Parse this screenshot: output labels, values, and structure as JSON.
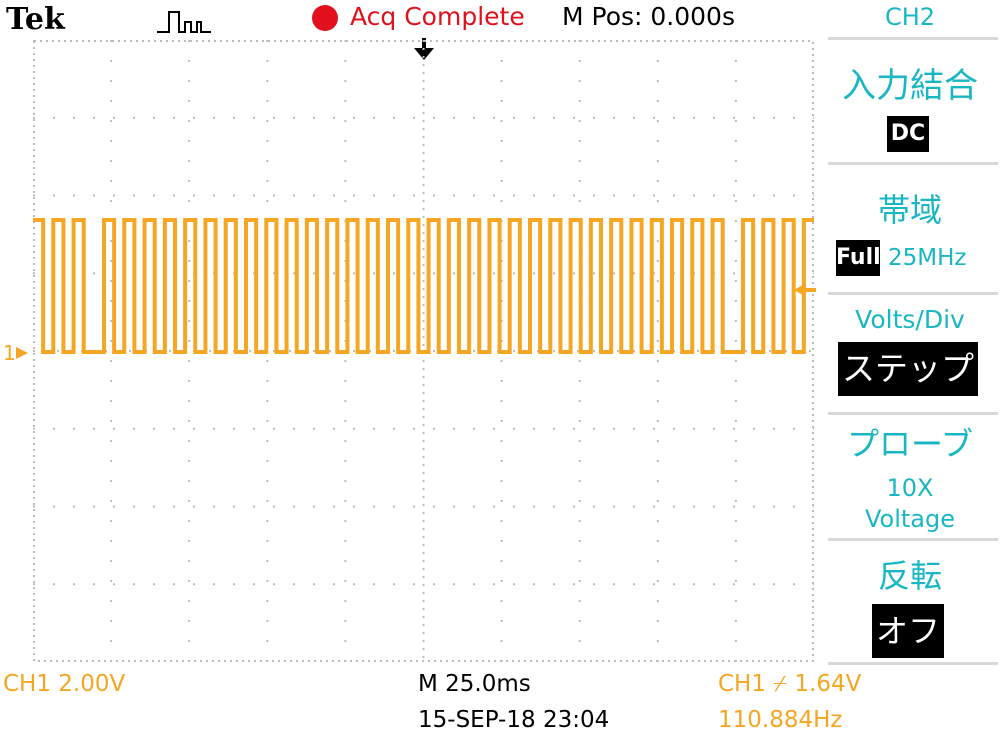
{
  "header": {
    "brand": "Tek",
    "acq_status": "Acq Complete",
    "m_pos": "M Pos: 0.000s"
  },
  "colors": {
    "ch1": "#f5a623",
    "menu": "#19b7c4",
    "status_red": "#e0101c",
    "grid_dot": "#bdbdbd"
  },
  "markers": {
    "ch1": "1"
  },
  "menu": {
    "channel": "CH2",
    "coupling_label": "入力結合",
    "coupling_value": "DC",
    "bandwidth_label": "帯域",
    "bandwidth_value": "Full",
    "bandwidth_unit": "25MHz",
    "voltsdiv_label": "Volts/Div",
    "voltsdiv_value": "ステップ",
    "probe_label": "プローブ",
    "probe_value": "10X",
    "probe_type": "Voltage",
    "invert_label": "反転",
    "invert_value": "オフ"
  },
  "status": {
    "ch1_scale": "CH1  2.00V",
    "timebase": "M 25.0ms",
    "datetime": "15-SEP-18 23:04",
    "trigger": "CH1 ⌿ 1.64V",
    "frequency": "110.884Hz"
  },
  "waveform": {
    "channel": "CH1",
    "divisions_x": 10,
    "divisions_y": 8,
    "high_div": 3.7,
    "low_div": 2.0,
    "bits": [
      1,
      0,
      1,
      0,
      1,
      0,
      0,
      1,
      0,
      1,
      0,
      1,
      0,
      1,
      0,
      1,
      0,
      1,
      0,
      1,
      0,
      1,
      0,
      1,
      0,
      1,
      0,
      1,
      0,
      1,
      0,
      1,
      0,
      1,
      0,
      1,
      0,
      1,
      0,
      1,
      0,
      1,
      0,
      1,
      0,
      1,
      0,
      1,
      0,
      1,
      0,
      1,
      0,
      1,
      0,
      1,
      0,
      1,
      0,
      1,
      0,
      1,
      0,
      1,
      0,
      1,
      0,
      1,
      0,
      0,
      1,
      0,
      1,
      0,
      1,
      0,
      1
    ]
  }
}
